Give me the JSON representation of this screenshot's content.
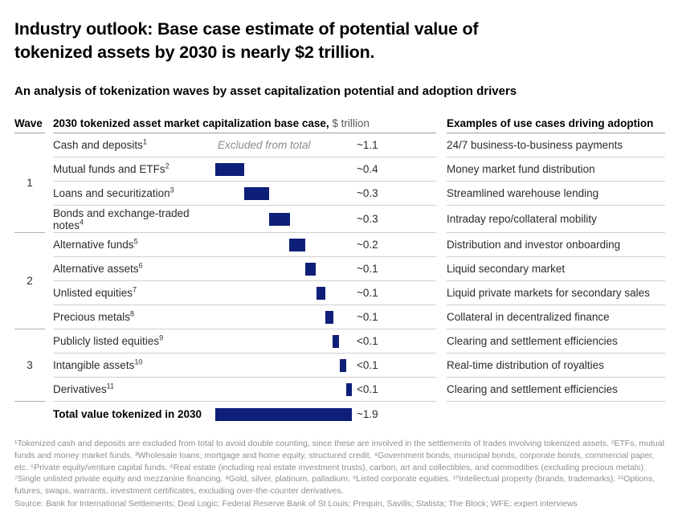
{
  "title": "Industry outlook: Base case estimate of potential value of tokenized assets by 2030 is nearly $2 trillion.",
  "subtitle": "An analysis of tokenization waves by asset capitalization potential and adoption drivers",
  "colors": {
    "bar": "#0d1f78",
    "row_divider": "#d0d0d0",
    "header_underline": "#9a9a9a"
  },
  "table": {
    "wave_header": "Wave",
    "main_header_bold": "2030 tokenized asset market capitalization base case,",
    "main_header_unit": " $ trillion",
    "usecase_header": "Examples of use cases driving adoption",
    "waves": [
      {
        "label": "1",
        "span": 4
      },
      {
        "label": "2",
        "span": 4
      },
      {
        "label": "3",
        "span": 3
      }
    ],
    "rows": [
      {
        "label": "Cash and deposits",
        "sup": "1",
        "note": "Excluded from total",
        "value": "~1.1",
        "use_case": "24/7 business-to-business payments",
        "bar": null,
        "tall": false,
        "total": false
      },
      {
        "label": "Mutual funds and ETFs",
        "sup": "2",
        "note": "",
        "value": "~0.4",
        "use_case": "Money market fund distribution",
        "bar": {
          "start": 0.0,
          "width": 0.212
        },
        "tall": false,
        "total": false
      },
      {
        "label": "Loans and securitization",
        "sup": "3",
        "note": "",
        "value": "~0.3",
        "use_case": "Streamlined warehouse lending",
        "bar": {
          "start": 0.212,
          "width": 0.182
        },
        "tall": false,
        "total": false
      },
      {
        "label": "Bonds and exchange-traded notes",
        "sup": "4",
        "note": "",
        "value": "~0.3",
        "use_case": "Intraday repo/collateral mobility",
        "bar": {
          "start": 0.394,
          "width": 0.153
        },
        "tall": true,
        "total": false
      },
      {
        "label": "Alternative funds",
        "sup": "5",
        "note": "",
        "value": "~0.2",
        "use_case": "Distribution and investor onboarding",
        "bar": {
          "start": 0.541,
          "width": 0.118
        },
        "tall": false,
        "total": false
      },
      {
        "label": "Alternative assets",
        "sup": "6",
        "note": "",
        "value": "~0.1",
        "use_case": "Liquid secondary market",
        "bar": {
          "start": 0.659,
          "width": 0.076
        },
        "tall": false,
        "total": false
      },
      {
        "label": "Unlisted equities",
        "sup": "7",
        "note": "",
        "value": "~0.1",
        "use_case": "Liquid private markets for secondary sales",
        "bar": {
          "start": 0.741,
          "width": 0.062
        },
        "tall": false,
        "total": false
      },
      {
        "label": "Precious metals",
        "sup": "8",
        "note": "",
        "value": "~0.1",
        "use_case": "Collateral in decentralized finance",
        "bar": {
          "start": 0.803,
          "width": 0.059
        },
        "tall": false,
        "total": false
      },
      {
        "label": "Publicly listed equities",
        "sup": "9",
        "note": "",
        "value": "<0.1",
        "use_case": "Clearing and settlement efficiencies",
        "bar": {
          "start": 0.859,
          "width": 0.049
        },
        "tall": false,
        "total": false
      },
      {
        "label": "Intangible assets",
        "sup": "10",
        "note": "",
        "value": "<0.1",
        "use_case": "Real-time distribution of royalties",
        "bar": {
          "start": 0.912,
          "width": 0.044
        },
        "tall": false,
        "total": false
      },
      {
        "label": "Derivatives",
        "sup": "11",
        "note": "",
        "value": "<0.1",
        "use_case": "Clearing and settlement efficiencies",
        "bar": {
          "start": 0.96,
          "width": 0.04
        },
        "tall": false,
        "total": false
      },
      {
        "label": "Total value tokenized in 2030",
        "sup": "",
        "note": "",
        "value": "~1.9",
        "use_case": "",
        "bar": {
          "start": 0.0,
          "width": 1.0
        },
        "tall": false,
        "total": true
      }
    ]
  },
  "chart_data": {
    "type": "bar",
    "subtype": "waterfall",
    "title": "2030 tokenized asset market capitalization base case, $ trillion",
    "categories": [
      "Cash and deposits",
      "Mutual funds and ETFs",
      "Loans and securitization",
      "Bonds and exchange-traded notes",
      "Alternative funds",
      "Alternative assets",
      "Unlisted equities",
      "Precious metals",
      "Publicly listed equities",
      "Intangible assets",
      "Derivatives",
      "Total value tokenized in 2030"
    ],
    "value_labels": [
      "~1.1",
      "~0.4",
      "~0.3",
      "~0.3",
      "~0.2",
      "~0.1",
      "~0.1",
      "~0.1",
      "<0.1",
      "<0.1",
      "<0.1",
      "~1.9"
    ],
    "values": [
      1.1,
      0.4,
      0.35,
      0.29,
      0.22,
      0.14,
      0.12,
      0.11,
      0.09,
      0.08,
      0.08,
      1.9
    ],
    "excluded_from_total": [
      "Cash and deposits"
    ],
    "waves": {
      "1": [
        "Cash and deposits",
        "Mutual funds and ETFs",
        "Loans and securitization",
        "Bonds and exchange-traded notes"
      ],
      "2": [
        "Alternative funds",
        "Alternative assets",
        "Unlisted equities",
        "Precious metals"
      ],
      "3": [
        "Publicly listed equities",
        "Intangible assets",
        "Derivatives"
      ]
    },
    "use_cases": [
      "24/7 business-to-business payments",
      "Money market fund distribution",
      "Streamlined warehouse lending",
      "Intraday repo/collateral mobility",
      "Distribution and investor onboarding",
      "Liquid secondary market",
      "Liquid private markets for secondary sales",
      "Collateral in decentralized finance",
      "Clearing and settlement efficiencies",
      "Real-time distribution of royalties",
      "Clearing and settlement efficiencies"
    ],
    "unit": "$ trillion",
    "xlim": [
      0,
      1.9
    ],
    "bar_color": "#0d1f78",
    "legend": false,
    "grid": false
  },
  "footnotes": "¹Tokenized cash and deposits are excluded from total to avoid double counting, since these are involved in the settlements of trades involving tokenized assets. ²ETFs, mutual funds and money market funds. ³Wholesale loans, mortgage and home equity, structured credit. ⁴Government bonds, municipal bonds, corporate bonds, commercial paper, etc. ⁵Private equity/venture capital funds. ⁶Real estate (including real estate investment trusts), carbon, art and collectibles, and commodities (excluding precious metals). ⁷Single unlisted private equity and mezzanine financing. ⁸Gold, silver, platinum, palladium. ⁹Listed corporate equities. ¹⁰Intellectual property (brands, trademarks). ¹¹Options, futures, swaps, warrants, investment certificates, excluding over-the-counter derivatives.",
  "source": "Source: Bank for International Settlements; Deal Logic; Federal Reserve Bank of St Louis; Prequin, Savills; Statista; The Block; WFE; expert interviews"
}
